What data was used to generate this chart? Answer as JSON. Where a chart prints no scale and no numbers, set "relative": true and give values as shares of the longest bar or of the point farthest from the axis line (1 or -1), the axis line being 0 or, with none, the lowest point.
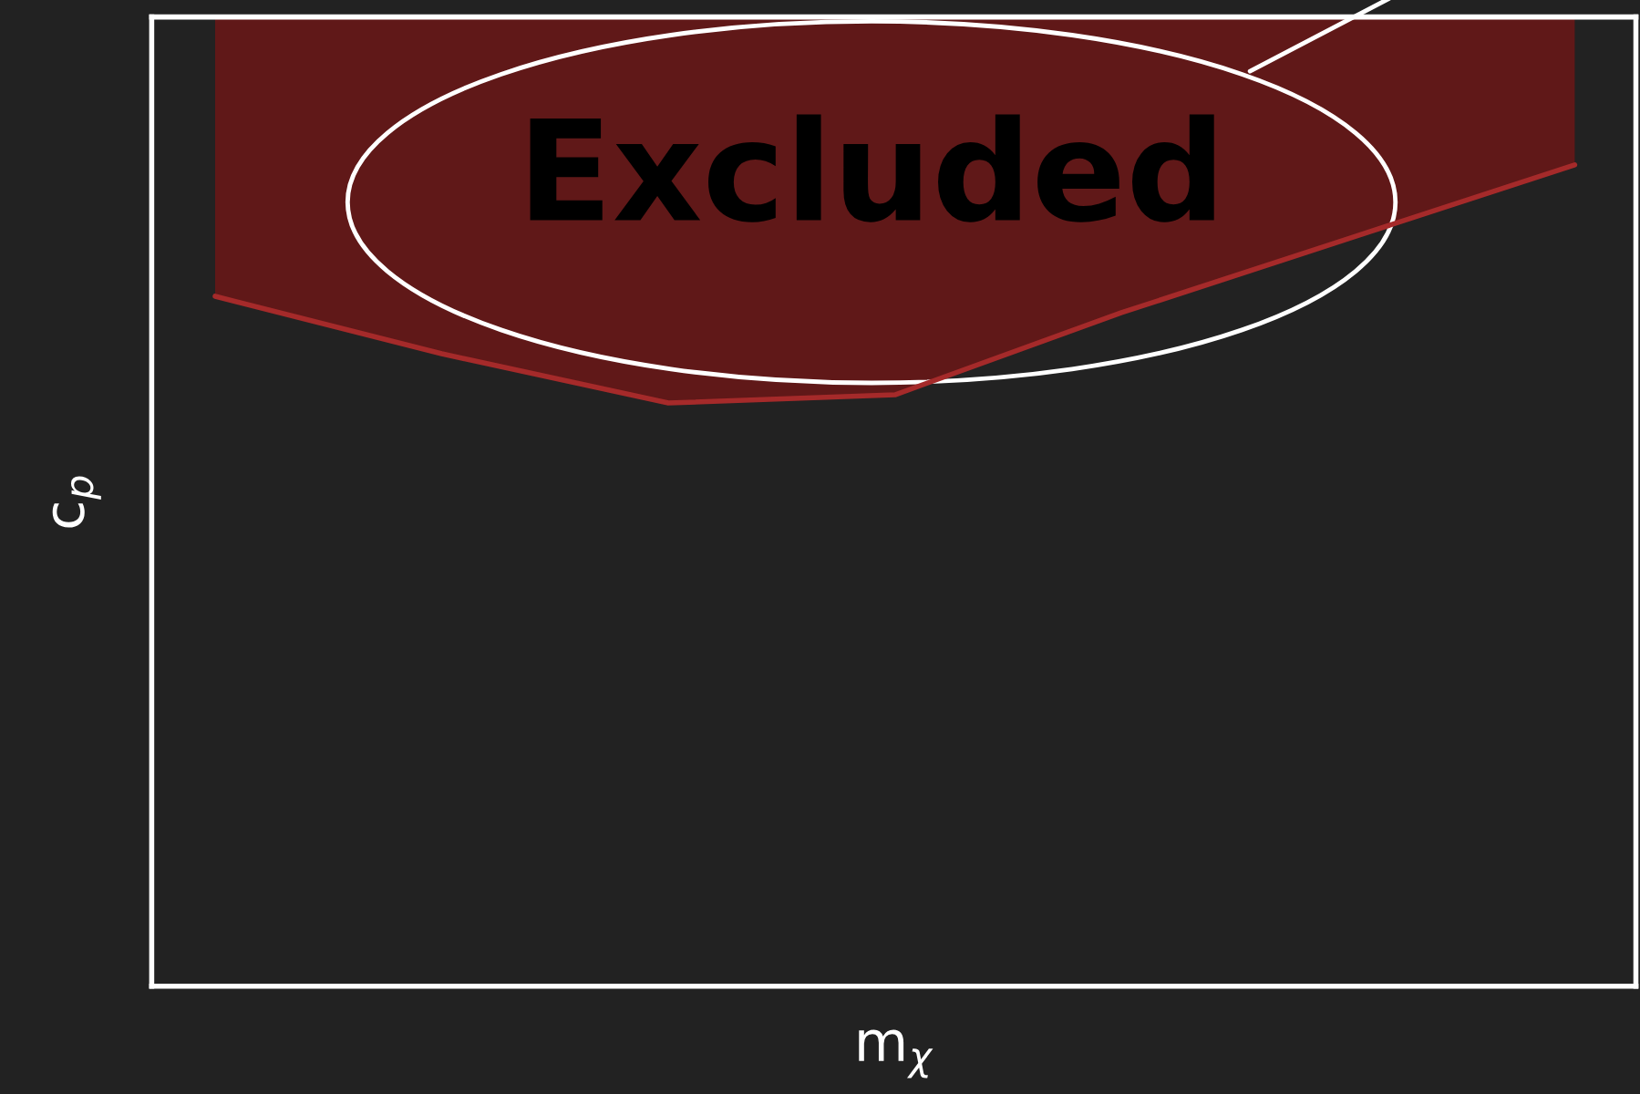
{
  "chart_data": {
    "type": "area",
    "relative": true,
    "xlabel": "m$_{χ}$",
    "ylabel": "c$_{p}$",
    "categories": [
      null,
      null,
      null,
      null,
      null,
      null,
      null
    ],
    "series": [
      {
        "color": "#a52a2a",
        "values": [
          0.84,
          0.77,
          0.71,
          0.72,
          0.82,
          0.91,
          1.0
        ]
      }
    ],
    "annotations": [
      "Excluded"
    ]
  }
}
